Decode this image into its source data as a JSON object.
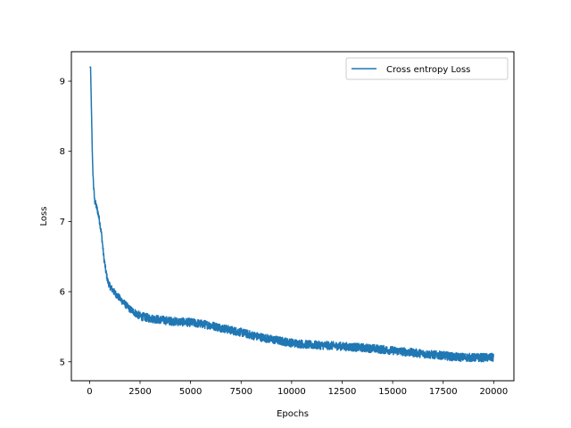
{
  "chart_data": {
    "type": "line",
    "title": "",
    "xlabel": "Epochs",
    "ylabel": "Loss",
    "xlim": [
      -900,
      21000
    ],
    "ylim": [
      4.73,
      9.42
    ],
    "xticks": [
      0,
      2500,
      5000,
      7500,
      10000,
      12500,
      15000,
      17500,
      20000
    ],
    "xtick_labels": [
      "0",
      "2500",
      "5000",
      "7500",
      "10000",
      "12500",
      "15000",
      "17500",
      "20000"
    ],
    "yticks": [
      5,
      6,
      7,
      8,
      9
    ],
    "ytick_labels": [
      "5",
      "6",
      "7",
      "8",
      "9"
    ],
    "grid": false,
    "legend_position": "upper right",
    "series": [
      {
        "name": "Cross entropy Loss",
        "color": "#1f77b4",
        "x": [
          0,
          50,
          100,
          150,
          200,
          250,
          300,
          400,
          500,
          600,
          700,
          800,
          900,
          1000,
          1200,
          1500,
          2000,
          2500,
          3000,
          4000,
          5000,
          6000,
          7000,
          7500,
          8000,
          9000,
          10000,
          11000,
          12000,
          12500,
          13000,
          14000,
          15000,
          16000,
          17000,
          17500,
          18000,
          19000,
          20000
        ],
        "values": [
          9.2,
          9.2,
          8.5,
          7.8,
          7.5,
          7.3,
          7.25,
          7.15,
          7.0,
          6.8,
          6.5,
          6.3,
          6.15,
          6.08,
          6.0,
          5.9,
          5.75,
          5.65,
          5.62,
          5.58,
          5.56,
          5.52,
          5.45,
          5.42,
          5.38,
          5.32,
          5.27,
          5.24,
          5.23,
          5.22,
          5.21,
          5.19,
          5.16,
          5.13,
          5.1,
          5.09,
          5.07,
          5.06,
          5.06
        ],
        "noise_amplitude": [
          0,
          0,
          0.02,
          0.04,
          0.05,
          0.05,
          0.05,
          0.05,
          0.05,
          0.05,
          0.05,
          0.05,
          0.05,
          0.05,
          0.05,
          0.05,
          0.05,
          0.06,
          0.06,
          0.06,
          0.06,
          0.06,
          0.06,
          0.06,
          0.06,
          0.06,
          0.06,
          0.06,
          0.06,
          0.06,
          0.06,
          0.06,
          0.06,
          0.06,
          0.06,
          0.06,
          0.06,
          0.06,
          0.06
        ]
      }
    ]
  }
}
